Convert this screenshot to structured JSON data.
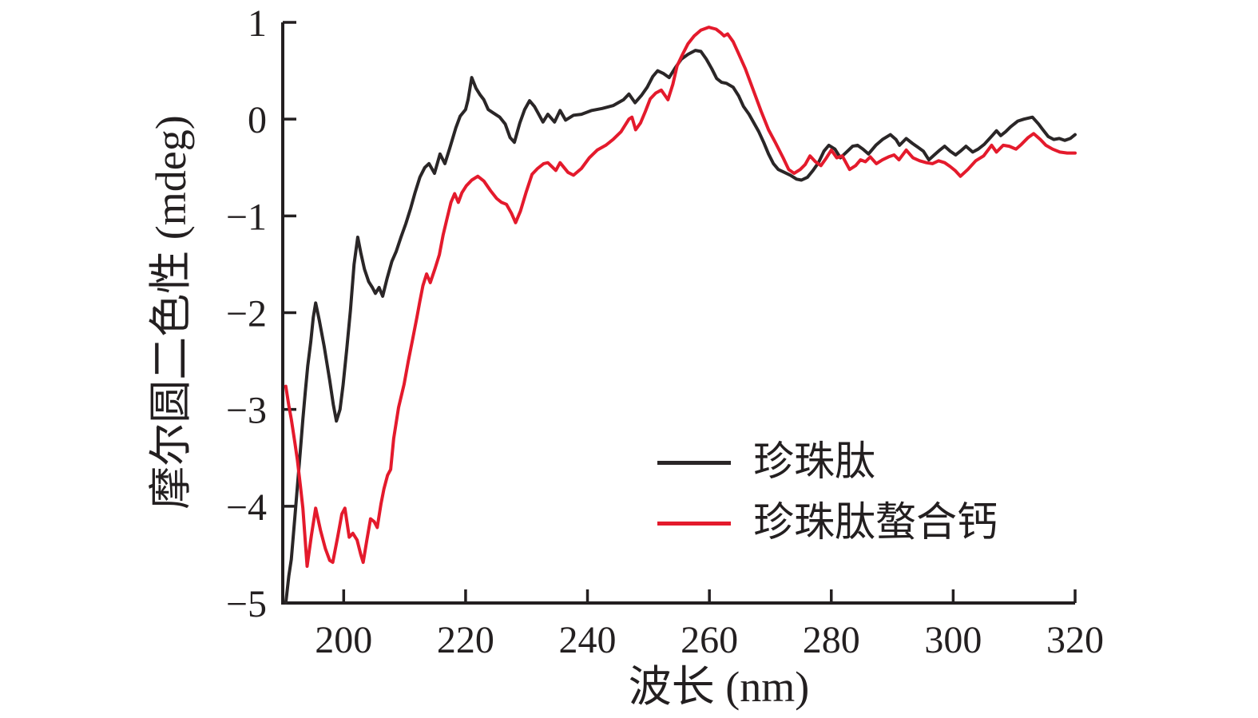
{
  "chart_data": {
    "type": "line",
    "title": "",
    "xlabel": "波长 (nm)",
    "ylabel": "摩尔圆二色性 (mdeg)",
    "xlim": [
      190,
      320
    ],
    "ylim": [
      -5,
      1
    ],
    "xticks": [
      200,
      220,
      240,
      260,
      280,
      300,
      320
    ],
    "yticks": [
      1,
      0,
      -1,
      -2,
      -3,
      -4,
      -5
    ],
    "grid": false,
    "axis_color": "#231f20",
    "legend_position": "inside lower right",
    "series": [
      {
        "name": "珍珠肽",
        "color": "#2a2627",
        "points": [
          [
            190.5,
            -5.0
          ],
          [
            191,
            -4.72
          ],
          [
            191.4,
            -4.55
          ],
          [
            192,
            -4.1
          ],
          [
            192.4,
            -3.8
          ],
          [
            192.9,
            -3.42
          ],
          [
            193.3,
            -3.1
          ],
          [
            193.7,
            -2.82
          ],
          [
            194.1,
            -2.55
          ],
          [
            194.6,
            -2.3
          ],
          [
            195,
            -2.05
          ],
          [
            195.4,
            -1.9
          ],
          [
            196,
            -2.08
          ],
          [
            196.8,
            -2.35
          ],
          [
            197.7,
            -2.7
          ],
          [
            198.3,
            -2.95
          ],
          [
            198.8,
            -3.12
          ],
          [
            199.4,
            -3.0
          ],
          [
            199.9,
            -2.75
          ],
          [
            200.5,
            -2.38
          ],
          [
            201.1,
            -1.98
          ],
          [
            201.7,
            -1.5
          ],
          [
            202.3,
            -1.22
          ],
          [
            202.8,
            -1.38
          ],
          [
            203.4,
            -1.55
          ],
          [
            204.1,
            -1.68
          ],
          [
            204.7,
            -1.74
          ],
          [
            205.2,
            -1.8
          ],
          [
            205.8,
            -1.74
          ],
          [
            206.4,
            -1.83
          ],
          [
            207.1,
            -1.65
          ],
          [
            207.9,
            -1.47
          ],
          [
            208.6,
            -1.37
          ],
          [
            209.4,
            -1.22
          ],
          [
            210.2,
            -1.08
          ],
          [
            211,
            -0.92
          ],
          [
            211.7,
            -0.76
          ],
          [
            212.5,
            -0.6
          ],
          [
            213.3,
            -0.5
          ],
          [
            214,
            -0.46
          ],
          [
            214.9,
            -0.56
          ],
          [
            215.8,
            -0.36
          ],
          [
            216.6,
            -0.46
          ],
          [
            217.4,
            -0.3
          ],
          [
            218.4,
            -0.09
          ],
          [
            219.1,
            0.03
          ],
          [
            220,
            0.1
          ],
          [
            220.4,
            0.2
          ],
          [
            221,
            0.43
          ],
          [
            221.7,
            0.32
          ],
          [
            222.4,
            0.25
          ],
          [
            223,
            0.2
          ],
          [
            223.7,
            0.1
          ],
          [
            224.4,
            0.07
          ],
          [
            225.6,
            0.02
          ],
          [
            226.5,
            -0.05
          ],
          [
            227.3,
            -0.19
          ],
          [
            228,
            -0.24
          ],
          [
            228.9,
            -0.04
          ],
          [
            229.7,
            0.1
          ],
          [
            230.5,
            0.19
          ],
          [
            231.3,
            0.13
          ],
          [
            232,
            0.05
          ],
          [
            232.7,
            -0.03
          ],
          [
            233.5,
            0.05
          ],
          [
            234.6,
            -0.03
          ],
          [
            235.5,
            0.09
          ],
          [
            236.4,
            -0.01
          ],
          [
            237.7,
            0.04
          ],
          [
            239,
            0.05
          ],
          [
            240.7,
            0.09
          ],
          [
            242.4,
            0.11
          ],
          [
            244.2,
            0.14
          ],
          [
            245.9,
            0.2
          ],
          [
            246.8,
            0.26
          ],
          [
            247.8,
            0.17
          ],
          [
            248.9,
            0.25
          ],
          [
            249.8,
            0.33
          ],
          [
            250.7,
            0.44
          ],
          [
            251.5,
            0.5
          ],
          [
            252.5,
            0.47
          ],
          [
            253.4,
            0.43
          ],
          [
            254.4,
            0.53
          ],
          [
            255.4,
            0.62
          ],
          [
            256.5,
            0.67
          ],
          [
            257.7,
            0.71
          ],
          [
            258.6,
            0.7
          ],
          [
            259.5,
            0.62
          ],
          [
            260.4,
            0.52
          ],
          [
            261.2,
            0.42
          ],
          [
            262,
            0.38
          ],
          [
            262.8,
            0.37
          ],
          [
            263.9,
            0.33
          ],
          [
            264.8,
            0.24
          ],
          [
            265.6,
            0.13
          ],
          [
            266.5,
            0.05
          ],
          [
            267.3,
            -0.04
          ],
          [
            268.1,
            -0.13
          ],
          [
            268.9,
            -0.24
          ],
          [
            269.7,
            -0.36
          ],
          [
            270.5,
            -0.46
          ],
          [
            271.3,
            -0.52
          ],
          [
            272.3,
            -0.55
          ],
          [
            273.3,
            -0.58
          ],
          [
            274.3,
            -0.62
          ],
          [
            275.1,
            -0.63
          ],
          [
            276.1,
            -0.6
          ],
          [
            277,
            -0.53
          ],
          [
            277.9,
            -0.45
          ],
          [
            278.8,
            -0.33
          ],
          [
            279.6,
            -0.27
          ],
          [
            280.6,
            -0.31
          ],
          [
            281.5,
            -0.4
          ],
          [
            282.5,
            -0.34
          ],
          [
            283.5,
            -0.28
          ],
          [
            284.3,
            -0.27
          ],
          [
            285.2,
            -0.31
          ],
          [
            286.1,
            -0.36
          ],
          [
            287.3,
            -0.27
          ],
          [
            288.4,
            -0.21
          ],
          [
            289.7,
            -0.16
          ],
          [
            290.6,
            -0.21
          ],
          [
            291.2,
            -0.27
          ],
          [
            292.3,
            -0.2
          ],
          [
            293.3,
            -0.25
          ],
          [
            294.2,
            -0.29
          ],
          [
            295.1,
            -0.33
          ],
          [
            296,
            -0.42
          ],
          [
            296.9,
            -0.37
          ],
          [
            297.8,
            -0.32
          ],
          [
            298.6,
            -0.28
          ],
          [
            299.5,
            -0.33
          ],
          [
            300.4,
            -0.37
          ],
          [
            301.2,
            -0.33
          ],
          [
            302.1,
            -0.28
          ],
          [
            303.2,
            -0.34
          ],
          [
            304.1,
            -0.31
          ],
          [
            305.1,
            -0.26
          ],
          [
            306.4,
            -0.17
          ],
          [
            307.1,
            -0.12
          ],
          [
            307.8,
            -0.17
          ],
          [
            308.6,
            -0.13
          ],
          [
            309.4,
            -0.08
          ],
          [
            310.6,
            -0.02
          ],
          [
            311.6,
            0.0
          ],
          [
            313,
            0.02
          ],
          [
            314,
            -0.05
          ],
          [
            314.6,
            -0.1
          ],
          [
            315.6,
            -0.18
          ],
          [
            316.5,
            -0.21
          ],
          [
            317.4,
            -0.2
          ],
          [
            318.3,
            -0.22
          ],
          [
            319.2,
            -0.2
          ],
          [
            320,
            -0.16
          ]
        ]
      },
      {
        "name": "珍珠肽螯合钙",
        "color": "#e41a2c",
        "points": [
          [
            190.5,
            -2.76
          ],
          [
            191,
            -2.96
          ],
          [
            191.4,
            -3.1
          ],
          [
            192,
            -3.35
          ],
          [
            192.4,
            -3.52
          ],
          [
            192.9,
            -3.79
          ],
          [
            193.3,
            -4.02
          ],
          [
            194,
            -4.62
          ],
          [
            194.7,
            -4.3
          ],
          [
            195.4,
            -4.02
          ],
          [
            196.2,
            -4.25
          ],
          [
            197,
            -4.44
          ],
          [
            197.7,
            -4.56
          ],
          [
            198.2,
            -4.58
          ],
          [
            199,
            -4.32
          ],
          [
            199.7,
            -4.08
          ],
          [
            200.2,
            -4.02
          ],
          [
            200.9,
            -4.32
          ],
          [
            201.5,
            -4.28
          ],
          [
            202.2,
            -4.35
          ],
          [
            202.8,
            -4.5
          ],
          [
            203.2,
            -4.58
          ],
          [
            203.8,
            -4.35
          ],
          [
            204.4,
            -4.13
          ],
          [
            205,
            -4.16
          ],
          [
            205.5,
            -4.22
          ],
          [
            206.1,
            -3.98
          ],
          [
            206.6,
            -3.82
          ],
          [
            207.2,
            -3.68
          ],
          [
            207.7,
            -3.62
          ],
          [
            208.2,
            -3.3
          ],
          [
            209,
            -2.98
          ],
          [
            209.9,
            -2.74
          ],
          [
            210.6,
            -2.5
          ],
          [
            211.3,
            -2.28
          ],
          [
            212,
            -2.05
          ],
          [
            212.5,
            -1.88
          ],
          [
            213,
            -1.72
          ],
          [
            213.6,
            -1.6
          ],
          [
            214.2,
            -1.69
          ],
          [
            215,
            -1.54
          ],
          [
            215.7,
            -1.4
          ],
          [
            216.3,
            -1.2
          ],
          [
            216.9,
            -1.04
          ],
          [
            217.6,
            -0.86
          ],
          [
            218.2,
            -0.77
          ],
          [
            218.8,
            -0.86
          ],
          [
            219.4,
            -0.76
          ],
          [
            220.1,
            -0.69
          ],
          [
            221,
            -0.63
          ],
          [
            222,
            -0.59
          ],
          [
            223,
            -0.64
          ],
          [
            224.1,
            -0.74
          ],
          [
            225.1,
            -0.82
          ],
          [
            225.9,
            -0.86
          ],
          [
            226.7,
            -0.88
          ],
          [
            227.5,
            -0.97
          ],
          [
            228.2,
            -1.07
          ],
          [
            229,
            -0.95
          ],
          [
            229.9,
            -0.76
          ],
          [
            230.9,
            -0.57
          ],
          [
            231.8,
            -0.51
          ],
          [
            232.8,
            -0.46
          ],
          [
            233.5,
            -0.45
          ],
          [
            234.8,
            -0.53
          ],
          [
            235.5,
            -0.45
          ],
          [
            236.8,
            -0.55
          ],
          [
            237.7,
            -0.58
          ],
          [
            239,
            -0.51
          ],
          [
            240.3,
            -0.4
          ],
          [
            241.6,
            -0.32
          ],
          [
            243,
            -0.27
          ],
          [
            244.2,
            -0.21
          ],
          [
            245.5,
            -0.13
          ],
          [
            246.8,
            0.0
          ],
          [
            247.3,
            0.02
          ],
          [
            247.9,
            -0.11
          ],
          [
            248.7,
            -0.04
          ],
          [
            249.5,
            0.08
          ],
          [
            250.3,
            0.21
          ],
          [
            251.2,
            0.27
          ],
          [
            252.1,
            0.3
          ],
          [
            253.2,
            0.2
          ],
          [
            254,
            0.36
          ],
          [
            254.7,
            0.55
          ],
          [
            255.6,
            0.67
          ],
          [
            256.5,
            0.78
          ],
          [
            257.5,
            0.86
          ],
          [
            258.6,
            0.92
          ],
          [
            259.9,
            0.95
          ],
          [
            261.1,
            0.93
          ],
          [
            261.9,
            0.89
          ],
          [
            262.4,
            0.86
          ],
          [
            263,
            0.88
          ],
          [
            263.9,
            0.8
          ],
          [
            264.7,
            0.69
          ],
          [
            265.9,
            0.52
          ],
          [
            267.2,
            0.3
          ],
          [
            268.5,
            0.08
          ],
          [
            269.7,
            -0.11
          ],
          [
            270.8,
            -0.24
          ],
          [
            272.1,
            -0.4
          ],
          [
            273,
            -0.52
          ],
          [
            273.9,
            -0.56
          ],
          [
            274.9,
            -0.52
          ],
          [
            275.7,
            -0.47
          ],
          [
            276.5,
            -0.38
          ],
          [
            277.4,
            -0.44
          ],
          [
            278.3,
            -0.48
          ],
          [
            279.2,
            -0.4
          ],
          [
            280,
            -0.32
          ],
          [
            280.9,
            -0.4
          ],
          [
            281.8,
            -0.38
          ],
          [
            283,
            -0.52
          ],
          [
            284,
            -0.48
          ],
          [
            284.8,
            -0.42
          ],
          [
            285.6,
            -0.44
          ],
          [
            286.4,
            -0.39
          ],
          [
            287.4,
            -0.46
          ],
          [
            288.4,
            -0.42
          ],
          [
            289.4,
            -0.39
          ],
          [
            290.3,
            -0.37
          ],
          [
            291.1,
            -0.42
          ],
          [
            292.3,
            -0.32
          ],
          [
            293.4,
            -0.4
          ],
          [
            294.5,
            -0.43
          ],
          [
            295.6,
            -0.45
          ],
          [
            296.6,
            -0.46
          ],
          [
            297.6,
            -0.43
          ],
          [
            298.6,
            -0.45
          ],
          [
            299.5,
            -0.49
          ],
          [
            300.3,
            -0.53
          ],
          [
            301.2,
            -0.59
          ],
          [
            302.4,
            -0.52
          ],
          [
            303.7,
            -0.43
          ],
          [
            305,
            -0.38
          ],
          [
            306.3,
            -0.27
          ],
          [
            307.1,
            -0.34
          ],
          [
            308.2,
            -0.27
          ],
          [
            309.2,
            -0.28
          ],
          [
            310.3,
            -0.31
          ],
          [
            311.2,
            -0.26
          ],
          [
            312.3,
            -0.19
          ],
          [
            313.2,
            -0.15
          ],
          [
            314.3,
            -0.21
          ],
          [
            315.2,
            -0.27
          ],
          [
            316.3,
            -0.31
          ],
          [
            317.5,
            -0.34
          ],
          [
            318.7,
            -0.35
          ],
          [
            320,
            -0.35
          ]
        ]
      }
    ]
  }
}
